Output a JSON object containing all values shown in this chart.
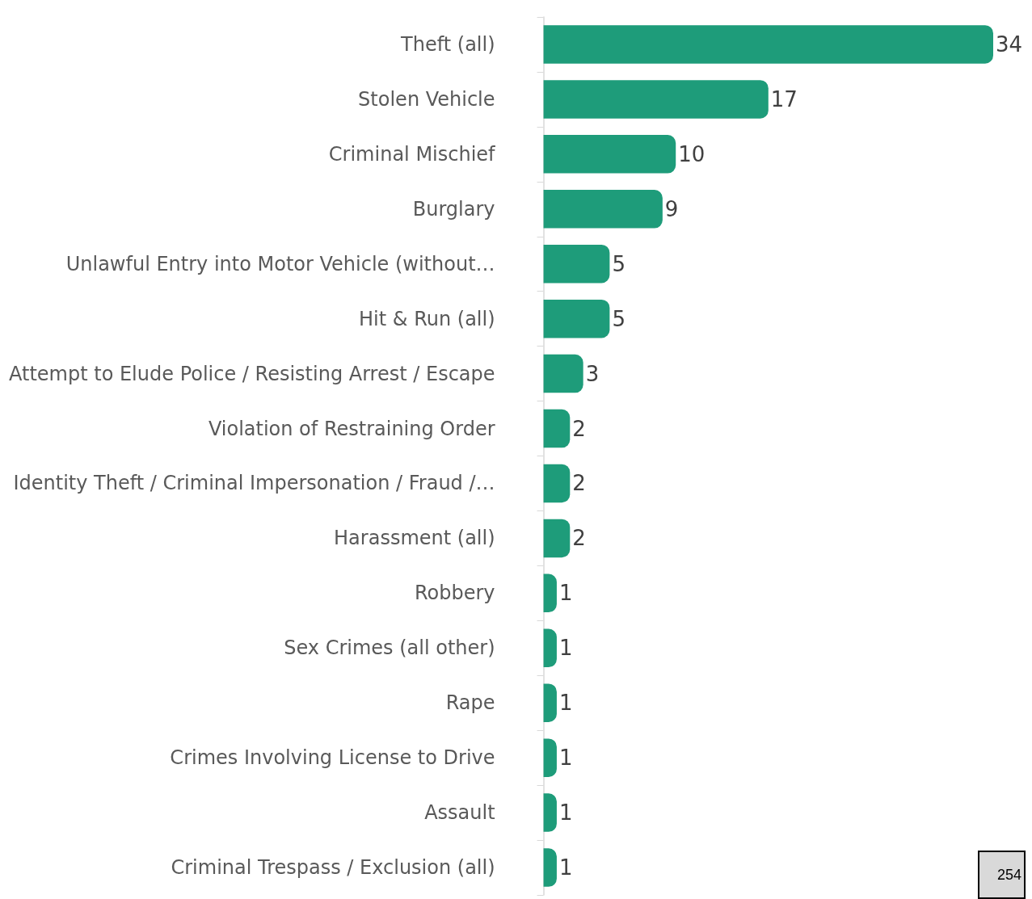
{
  "chart_data": {
    "type": "bar",
    "orientation": "horizontal",
    "data_labels": true,
    "categories": [
      "Theft (all)",
      "Stolen Vehicle",
      "Criminal Mischief",
      "Burglary",
      "Unlawful Entry into Motor Vehicle (without…",
      "Hit & Run (all)",
      "Attempt to Elude Police / Resisting Arrest / Escape",
      "Violation of Restraining Order",
      "Identity Theft / Criminal Impersonation / Fraud /…",
      "Harassment (all)",
      "Robbery",
      "Sex Crimes (all other)",
      "Rape",
      "Crimes Involving License to Drive",
      "Assault",
      "Criminal Trespass / Exclusion (all)"
    ],
    "values": [
      34,
      17,
      10,
      9,
      5,
      5,
      3,
      2,
      2,
      2,
      1,
      1,
      1,
      1,
      1,
      1
    ],
    "color": "#1e9c7a",
    "annotations": [
      "254"
    ]
  }
}
